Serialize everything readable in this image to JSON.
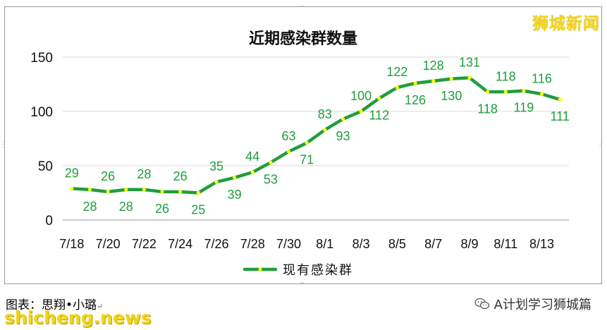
{
  "chart_data": {
    "type": "line",
    "title": "近期感染群数量",
    "categories": [
      "7/18",
      "7/19",
      "7/20",
      "7/21",
      "7/22",
      "7/23",
      "7/24",
      "7/25",
      "7/26",
      "7/27",
      "7/28",
      "7/29",
      "7/30",
      "7/31",
      "8/1",
      "8/2",
      "8/3",
      "8/4",
      "8/5",
      "8/6",
      "8/7",
      "8/8",
      "8/9",
      "8/10",
      "8/11",
      "8/12",
      "8/13",
      "8/14"
    ],
    "x_tick_labels": [
      "7/18",
      "7/20",
      "7/22",
      "7/24",
      "7/26",
      "7/28",
      "7/30",
      "8/1",
      "8/3",
      "8/5",
      "8/7",
      "8/9",
      "8/11",
      "8/13"
    ],
    "series": [
      {
        "name": "现有感染群",
        "values": [
          29,
          28,
          26,
          28,
          28,
          26,
          26,
          25,
          35,
          39,
          44,
          53,
          63,
          71,
          83,
          93,
          100,
          112,
          122,
          126,
          128,
          130,
          131,
          118,
          118,
          119,
          116,
          111
        ],
        "line_color": "#1e9e3c",
        "marker_color": "#ffff00",
        "label_color": "#1e9e3c"
      }
    ],
    "ylim": [
      0,
      150
    ],
    "yticks": [
      0,
      50,
      100,
      150
    ],
    "grid": true,
    "legend": "bottom-center",
    "xlabel": "",
    "ylabel": ""
  },
  "watermark": "狮城新闻",
  "caption": {
    "text": "图表：思翔•小璐",
    "mark": "↵"
  },
  "account": {
    "icon": "wechat-icon",
    "text": "A计划学习狮城篇"
  },
  "site_mark": "shicheng.news"
}
